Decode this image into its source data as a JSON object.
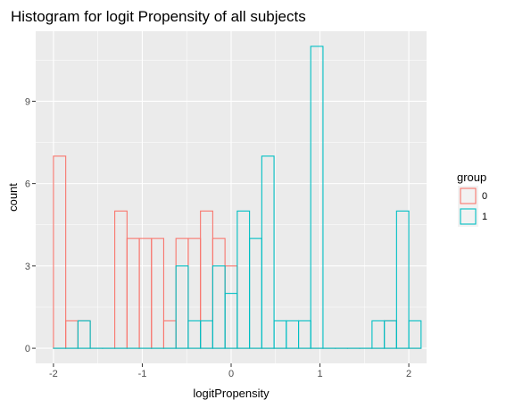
{
  "chart_data": {
    "type": "bar",
    "title": "Histogram for logit Propensity of all subjects",
    "xlabel": "logitPropensity",
    "ylabel": "count",
    "xlim": [
      -2.2,
      2.2
    ],
    "ylim": [
      -0.55,
      11.55
    ],
    "x_ticks": [
      -2,
      -1,
      0,
      1,
      2
    ],
    "x_tick_labels": [
      "-2",
      "-1",
      "0",
      "1",
      "2"
    ],
    "y_ticks": [
      0,
      3,
      6,
      9
    ],
    "y_tick_labels": [
      "0",
      "3",
      "6",
      "9"
    ],
    "bin_centers": [
      -1.931,
      -1.793,
      -1.655,
      -1.517,
      -1.379,
      -1.241,
      -1.103,
      -0.965,
      -0.828,
      -0.69,
      -0.552,
      -0.414,
      -0.276,
      -0.138,
      0.0,
      0.138,
      0.276,
      0.414,
      0.552,
      0.69,
      0.828,
      0.965,
      1.103,
      1.241,
      1.379,
      1.517,
      1.655,
      1.793,
      1.931,
      2.069
    ],
    "series": [
      {
        "name": "0",
        "color": "#F8766D",
        "values": [
          7,
          1,
          1,
          0,
          0,
          5,
          4,
          4,
          4,
          1,
          4,
          4,
          5,
          4,
          3,
          0,
          0,
          0,
          0,
          0,
          0,
          0,
          0,
          0,
          0,
          0,
          0,
          1,
          0,
          0
        ]
      },
      {
        "name": "1",
        "color": "#00BFC4",
        "values": [
          0,
          0,
          1,
          0,
          0,
          0,
          0,
          0,
          0,
          0,
          3,
          1,
          1,
          3,
          2,
          5,
          4,
          7,
          1,
          1,
          1,
          11,
          0,
          0,
          0,
          0,
          1,
          1,
          5,
          1
        ]
      }
    ],
    "legend": {
      "title": "group",
      "position": "right"
    },
    "grid": true,
    "panel_background": "#EBEBEB",
    "grid_color": "#FFFFFF"
  }
}
